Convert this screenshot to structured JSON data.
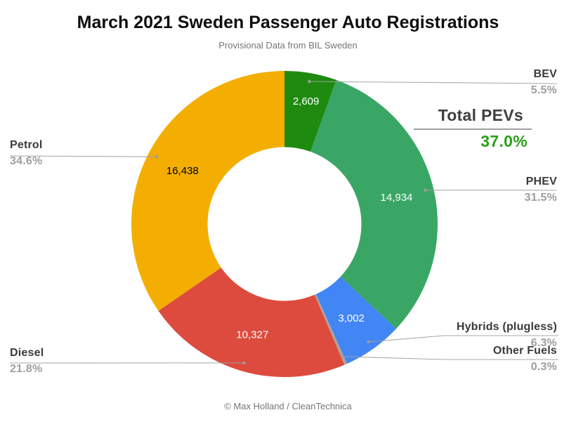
{
  "header": {
    "title": "March 2021 Sweden Passenger Auto Registrations",
    "subtitle": "Provisional Data from BIL Sweden"
  },
  "total_callout": {
    "label": "Total PEVs",
    "value": "37.0%"
  },
  "footer": {
    "credit": "© Max Holland / CleanTechnica"
  },
  "palette": {
    "bev_green": "#1E8B10",
    "phev_green": "#3AA665",
    "hybrid_blue": "#4285F4",
    "other_tan": "#B2A295",
    "diesel_red": "#DD4B3E",
    "petrol_yellow": "#F3AE01",
    "accent_green": "#2D9E1C",
    "label_dark": "#3A3A3A",
    "label_gray": "#9E9E9E",
    "leader_gray": "#9E9E9E"
  },
  "chart_data": {
    "type": "pie",
    "donut": true,
    "donut_hole_ratio": 0.5,
    "title": "March 2021 Sweden Passenger Auto Registrations",
    "subtitle": "Provisional Data from BIL Sweden",
    "legend_position": "none",
    "start_angle_deg": 0,
    "direction": "clockwise",
    "slices": [
      {
        "name": "BEV",
        "pct": 5.5,
        "pct_label": "5.5%",
        "value": 2609,
        "value_label": "2,609",
        "color": "#1E8B10",
        "text_color": "#FFFFFF"
      },
      {
        "name": "PHEV",
        "pct": 31.5,
        "pct_label": "31.5%",
        "value": 14934,
        "value_label": "14,934",
        "color": "#3AA665",
        "text_color": "#FFFFFF"
      },
      {
        "name": "Hybrids (plugless)",
        "pct": 6.3,
        "pct_label": "6.3%",
        "value": 3002,
        "value_label": "3,002",
        "color": "#4285F4",
        "text_color": "#FFFFFF"
      },
      {
        "name": "Other Fuels",
        "pct": 0.3,
        "pct_label": "0.3%",
        "value_label": "",
        "color": "#B2A295",
        "text_color": "#FFFFFF"
      },
      {
        "name": "Diesel",
        "pct": 21.8,
        "pct_label": "21.8%",
        "value": 10327,
        "value_label": "10,327",
        "color": "#DD4B3E",
        "text_color": "#FFFFFF"
      },
      {
        "name": "Petrol",
        "pct": 34.6,
        "pct_label": "34.6%",
        "value": 16438,
        "value_label": "16,438",
        "color": "#F3AE01",
        "text_color": "#000000"
      }
    ],
    "total_pevs_pct": 37.0
  }
}
